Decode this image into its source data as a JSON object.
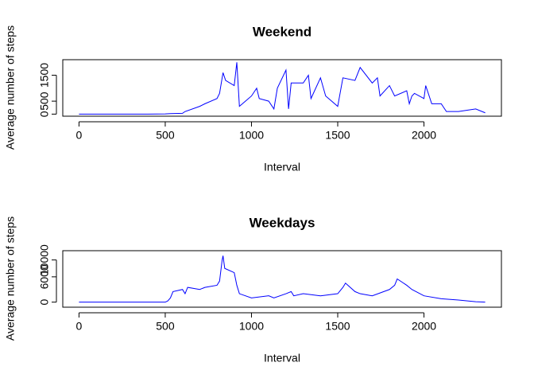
{
  "chart_data": [
    {
      "type": "line",
      "title": "Weekend",
      "xlabel": "Interval",
      "ylabel": "Average number of steps",
      "x": [
        0,
        200,
        400,
        500,
        530,
        600,
        615,
        700,
        730,
        800,
        815,
        835,
        850,
        900,
        915,
        930,
        1000,
        1030,
        1045,
        1100,
        1130,
        1150,
        1200,
        1215,
        1230,
        1300,
        1330,
        1345,
        1400,
        1430,
        1500,
        1530,
        1600,
        1630,
        1700,
        1730,
        1745,
        1800,
        1830,
        1900,
        1915,
        1930,
        1945,
        2000,
        2010,
        2045,
        2100,
        2130,
        2200,
        2300,
        2355
      ],
      "series": [
        {
          "name": "Weekend",
          "color": "#0000ff",
          "values": [
            0,
            0,
            0,
            10,
            20,
            30,
            100,
            300,
            400,
            600,
            800,
            1600,
            1300,
            1100,
            2000,
            300,
            700,
            1000,
            600,
            500,
            200,
            1000,
            1700,
            200,
            1200,
            1200,
            1500,
            600,
            1400,
            700,
            300,
            1400,
            1300,
            1800,
            1200,
            1400,
            700,
            1100,
            700,
            900,
            400,
            700,
            800,
            600,
            1100,
            400,
            400,
            100,
            100,
            200,
            50
          ]
        }
      ],
      "xlim": [
        -94,
        2449
      ],
      "xticks": [
        0,
        500,
        1000,
        1500,
        2000
      ],
      "ylim": [
        -80,
        2100
      ],
      "yticks": [
        0,
        500,
        1500
      ]
    },
    {
      "type": "line",
      "title": "Weekdays",
      "xlabel": "Interval",
      "ylabel": "Average number of steps",
      "x": [
        0,
        300,
        500,
        515,
        530,
        545,
        600,
        615,
        630,
        700,
        730,
        800,
        815,
        830,
        835,
        845,
        900,
        915,
        930,
        1000,
        1100,
        1130,
        1200,
        1230,
        1245,
        1300,
        1400,
        1500,
        1530,
        1545,
        1600,
        1630,
        1700,
        1800,
        1830,
        1845,
        1900,
        1930,
        2000,
        2100,
        2200,
        2300,
        2355
      ],
      "series": [
        {
          "name": "Weekdays",
          "color": "#0000ff",
          "values": [
            0,
            0,
            0,
            300,
            1000,
            2500,
            3000,
            2000,
            3500,
            3000,
            3500,
            4000,
            5000,
            10000,
            11000,
            8000,
            7000,
            4000,
            2000,
            1000,
            1500,
            1000,
            2000,
            2500,
            1500,
            2000,
            1500,
            2000,
            3500,
            4500,
            2500,
            2000,
            1500,
            3000,
            4000,
            5500,
            4000,
            3000,
            1500,
            800,
            500,
            100,
            0
          ]
        }
      ],
      "xlim": [
        -94,
        2449
      ],
      "xticks": [
        0,
        500,
        1000,
        1500,
        2000
      ],
      "ylim": [
        -1200,
        12200
      ],
      "yticks": [
        0,
        6000,
        10000
      ]
    }
  ]
}
